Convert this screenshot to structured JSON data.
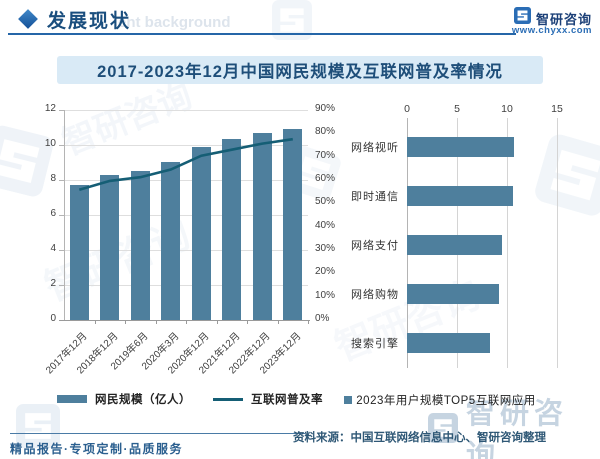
{
  "header": {
    "section_title": "发展现状",
    "watermark_text": "ent background",
    "brand": {
      "name": "智研咨询",
      "website": "www.chyxx.com"
    }
  },
  "chart_title": "2017-2023年12月中国网民规模及互联网普及率情况",
  "chart_data": [
    {
      "type": "bar",
      "subtype": "bar+line combo",
      "categories": [
        "2017年12月",
        "2018年12月",
        "2019年6月",
        "2020年3月",
        "2020年12月",
        "2021年12月",
        "2022年12月",
        "2023年12月"
      ],
      "series": [
        {
          "name": "网民规模（亿人）",
          "type": "bar",
          "axis": "left",
          "values": [
            7.72,
            8.29,
            8.54,
            9.04,
            9.89,
            10.32,
            10.67,
            10.92
          ]
        },
        {
          "name": "互联网普及率",
          "type": "line",
          "axis": "right",
          "values": [
            55.8,
            59.6,
            61.2,
            64.5,
            70.4,
            73.0,
            75.6,
            77.5
          ]
        }
      ],
      "left_axis": {
        "min": 0,
        "max": 12,
        "step": 2,
        "suffix": ""
      },
      "right_axis": {
        "min": 0,
        "max": 90,
        "step": 10,
        "suffix": "%"
      },
      "grid": true,
      "legend_position": "bottom"
    },
    {
      "type": "bar",
      "orientation": "horizontal",
      "legend": "2023年用户规模TOP5互联网应用",
      "categories": [
        "网络视听",
        "即时通信",
        "网络支付",
        "网络购物",
        "搜索引擎"
      ],
      "values": [
        10.67,
        10.6,
        9.54,
        9.15,
        8.27
      ],
      "xlim": [
        0,
        15
      ],
      "xticks": [
        0,
        5,
        10,
        15
      ],
      "grid": true,
      "legend_position": "bottom"
    }
  ],
  "footer": {
    "tagline": "精品报告·专项定制·品质服务",
    "source": "资料来源：中国互联网络信息中心、智研咨询整理"
  },
  "colors": {
    "bar": "#4e7f9d",
    "line": "#155e75",
    "accent": "#2a6db5",
    "title_band_bg": "#d9eaf6",
    "title_text": "#1e4e79"
  }
}
